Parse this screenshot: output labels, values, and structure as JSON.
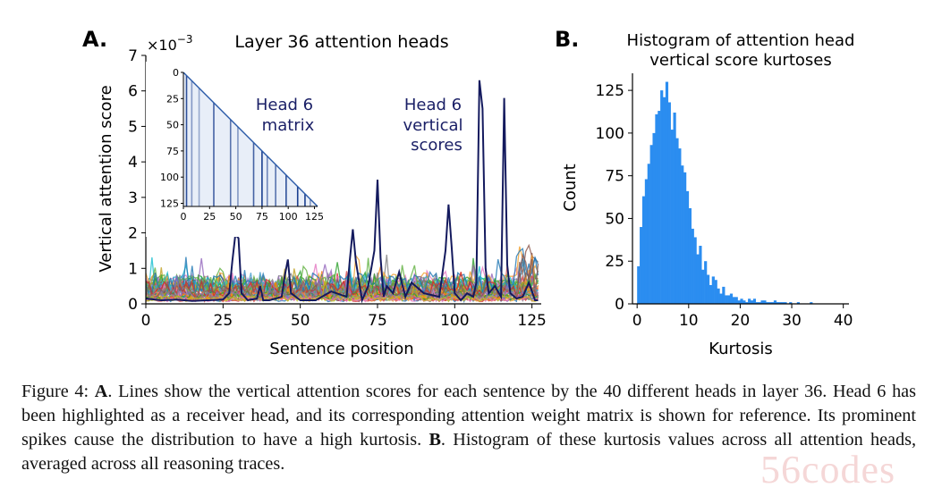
{
  "figure": {
    "panel_a_letter": "A.",
    "panel_b_letter": "B.",
    "panel_a": {
      "title": "Layer 36 attention heads",
      "exponent_label": "×10",
      "exponent_sup": "−3",
      "inset_label_line1": "Head 6",
      "inset_label_line2": "matrix",
      "series_label_line1": "Head 6",
      "series_label_line2": "vertical",
      "series_label_line3": "scores"
    },
    "panel_b": {
      "title_line1": "Histogram of attention head",
      "title_line2": "vertical score kurtoses"
    }
  },
  "chart_data": [
    {
      "type": "line",
      "title": "Layer 36 attention heads",
      "xlabel": "Sentence position",
      "ylabel": "Vertical attention score",
      "y_scale_factor": "×10^-3",
      "xlim": [
        0,
        128
      ],
      "ylim": [
        0,
        7
      ],
      "xticks": [
        0,
        25,
        50,
        75,
        100,
        125
      ],
      "yticks": [
        0,
        1,
        2,
        3,
        4,
        5,
        6,
        7
      ],
      "highlight_series": {
        "name": "Head 6",
        "x": [
          0,
          5,
          10,
          15,
          20,
          25,
          27,
          28,
          29,
          30,
          31,
          33,
          36,
          37,
          38,
          40,
          44,
          45,
          46,
          47,
          50,
          55,
          60,
          65,
          66,
          67,
          68,
          70,
          72,
          74,
          75,
          76,
          77,
          78,
          80,
          82,
          84,
          86,
          90,
          95,
          97,
          98,
          99,
          100,
          102,
          104,
          106,
          107,
          108,
          109,
          110,
          111,
          113,
          115,
          116,
          117,
          118,
          120,
          122,
          124,
          126,
          127
        ],
        "values": [
          0.15,
          0.1,
          0.12,
          0.08,
          0.1,
          0.12,
          0.3,
          1.2,
          1.95,
          1.85,
          0.3,
          0.1,
          0.15,
          0.5,
          0.1,
          0.1,
          0.2,
          0.8,
          1.25,
          0.3,
          0.1,
          0.1,
          0.35,
          0.2,
          1.2,
          2.1,
          1.2,
          0.1,
          0.5,
          1.5,
          3.5,
          1.3,
          0.2,
          0.5,
          0.3,
          0.9,
          0.2,
          0.6,
          0.3,
          0.2,
          1.5,
          2.8,
          1.6,
          0.3,
          0.1,
          0.3,
          0.2,
          0.6,
          6.3,
          5.5,
          1.0,
          0.3,
          0.5,
          0.2,
          5.8,
          1.1,
          0.3,
          0.15,
          0.2,
          0.6,
          0.1,
          0.1
        ]
      },
      "background_series_count": 39,
      "background_series_note_range": [
        0,
        1.3
      ]
    },
    {
      "type": "bar",
      "title": "Histogram of attention head vertical score kurtoses",
      "xlabel": "Kurtosis",
      "ylabel": "Count",
      "xlim": [
        0,
        42
      ],
      "ylim": [
        0,
        135
      ],
      "xticks": [
        0,
        10,
        20,
        30,
        40
      ],
      "yticks": [
        0,
        25,
        50,
        75,
        100,
        125
      ],
      "bin_width": 0.5,
      "bin_start": 0,
      "values": [
        22,
        45,
        63,
        73,
        82,
        93,
        100,
        111,
        113,
        125,
        121,
        130,
        118,
        102,
        112,
        97,
        91,
        81,
        77,
        66,
        56,
        44,
        39,
        29,
        34,
        20,
        25,
        17,
        11,
        16,
        14,
        9,
        6,
        10,
        5,
        5,
        6,
        4,
        4,
        2,
        3,
        2,
        1,
        3,
        2,
        3,
        1,
        1,
        2,
        2,
        1,
        1,
        1,
        2,
        1,
        1,
        1,
        1,
        0,
        1,
        0,
        0,
        1,
        0,
        0,
        0,
        0,
        1,
        0,
        0,
        0,
        0
      ]
    }
  ],
  "caption": {
    "label": "Figure 4: ",
    "a": "A",
    "text1": ". Lines show the vertical attention scores for each sentence by the 40 different heads in layer 36. Head 6 has been highlighted as a receiver head, and its corresponding attention weight matrix is shown for reference. Its prominent spikes cause the distribution to have a high kurtosis. ",
    "b": "B",
    "text2": ". Histogram of these kurtosis values across all attention heads, averaged across all reasoning traces."
  },
  "watermark": "56codes"
}
